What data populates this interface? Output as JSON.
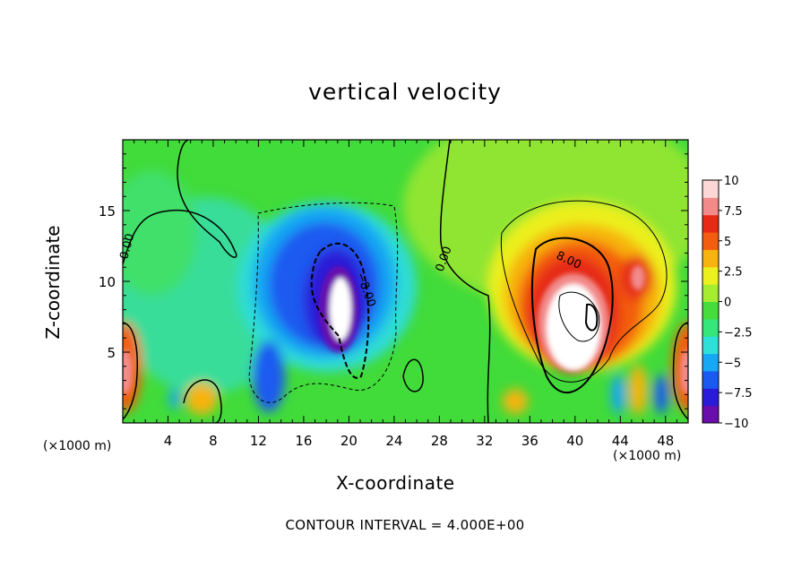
{
  "chart_data": {
    "type": "heatmap",
    "title": "vertical velocity",
    "xlabel": "X-coordinate",
    "ylabel": "Z-coordinate",
    "x_scale_note_left": "(×1000 m)",
    "x_scale_note_right": "(×1000 m)",
    "footer": "CONTOUR INTERVAL = 4.000E+00",
    "xlim": [
      0,
      50
    ],
    "ylim": [
      0,
      20
    ],
    "x_ticks": [
      "4",
      "8",
      "12",
      "16",
      "20",
      "24",
      "28",
      "32",
      "36",
      "40",
      "44",
      "48"
    ],
    "y_ticks": [
      "5",
      "10",
      "15"
    ],
    "colorbar": {
      "range": [
        -10,
        10
      ],
      "tick_labels": [
        "10",
        "7.5",
        "5",
        "2.5",
        "0",
        "−2.5",
        "−5",
        "−7.5",
        "−10"
      ],
      "colors": [
        "#6a0dad",
        "#2a1bd8",
        "#1a5af0",
        "#17a8f5",
        "#2fe0d8",
        "#35e67a",
        "#46dc3c",
        "#a6ec30",
        "#ecf01e",
        "#f7b30f",
        "#f35d10",
        "#e62a16",
        "#f28a8a",
        "#fdd6d6"
      ]
    },
    "contour_interval": 4.0,
    "contour_labels": [
      "0.00",
      "0.00",
      "8.00",
      "−8.00"
    ],
    "features": [
      {
        "sign": "negative",
        "label": "downdraft core",
        "x_center": 19,
        "z_center": 9,
        "peak": -10
      },
      {
        "sign": "positive",
        "label": "updraft core",
        "x_center": 39,
        "z_center": 8,
        "peak": 10
      },
      {
        "sign": "positive",
        "label": "updraft",
        "x_center": 45,
        "z_center": 10.5,
        "peak": 9
      },
      {
        "sign": "positive",
        "label": "edge updraft",
        "x_center": 0.5,
        "z_center": 3.5,
        "peak": 9
      },
      {
        "sign": "positive",
        "label": "edge updraft",
        "x_center": 49.5,
        "z_center": 3,
        "peak": 9
      }
    ]
  }
}
